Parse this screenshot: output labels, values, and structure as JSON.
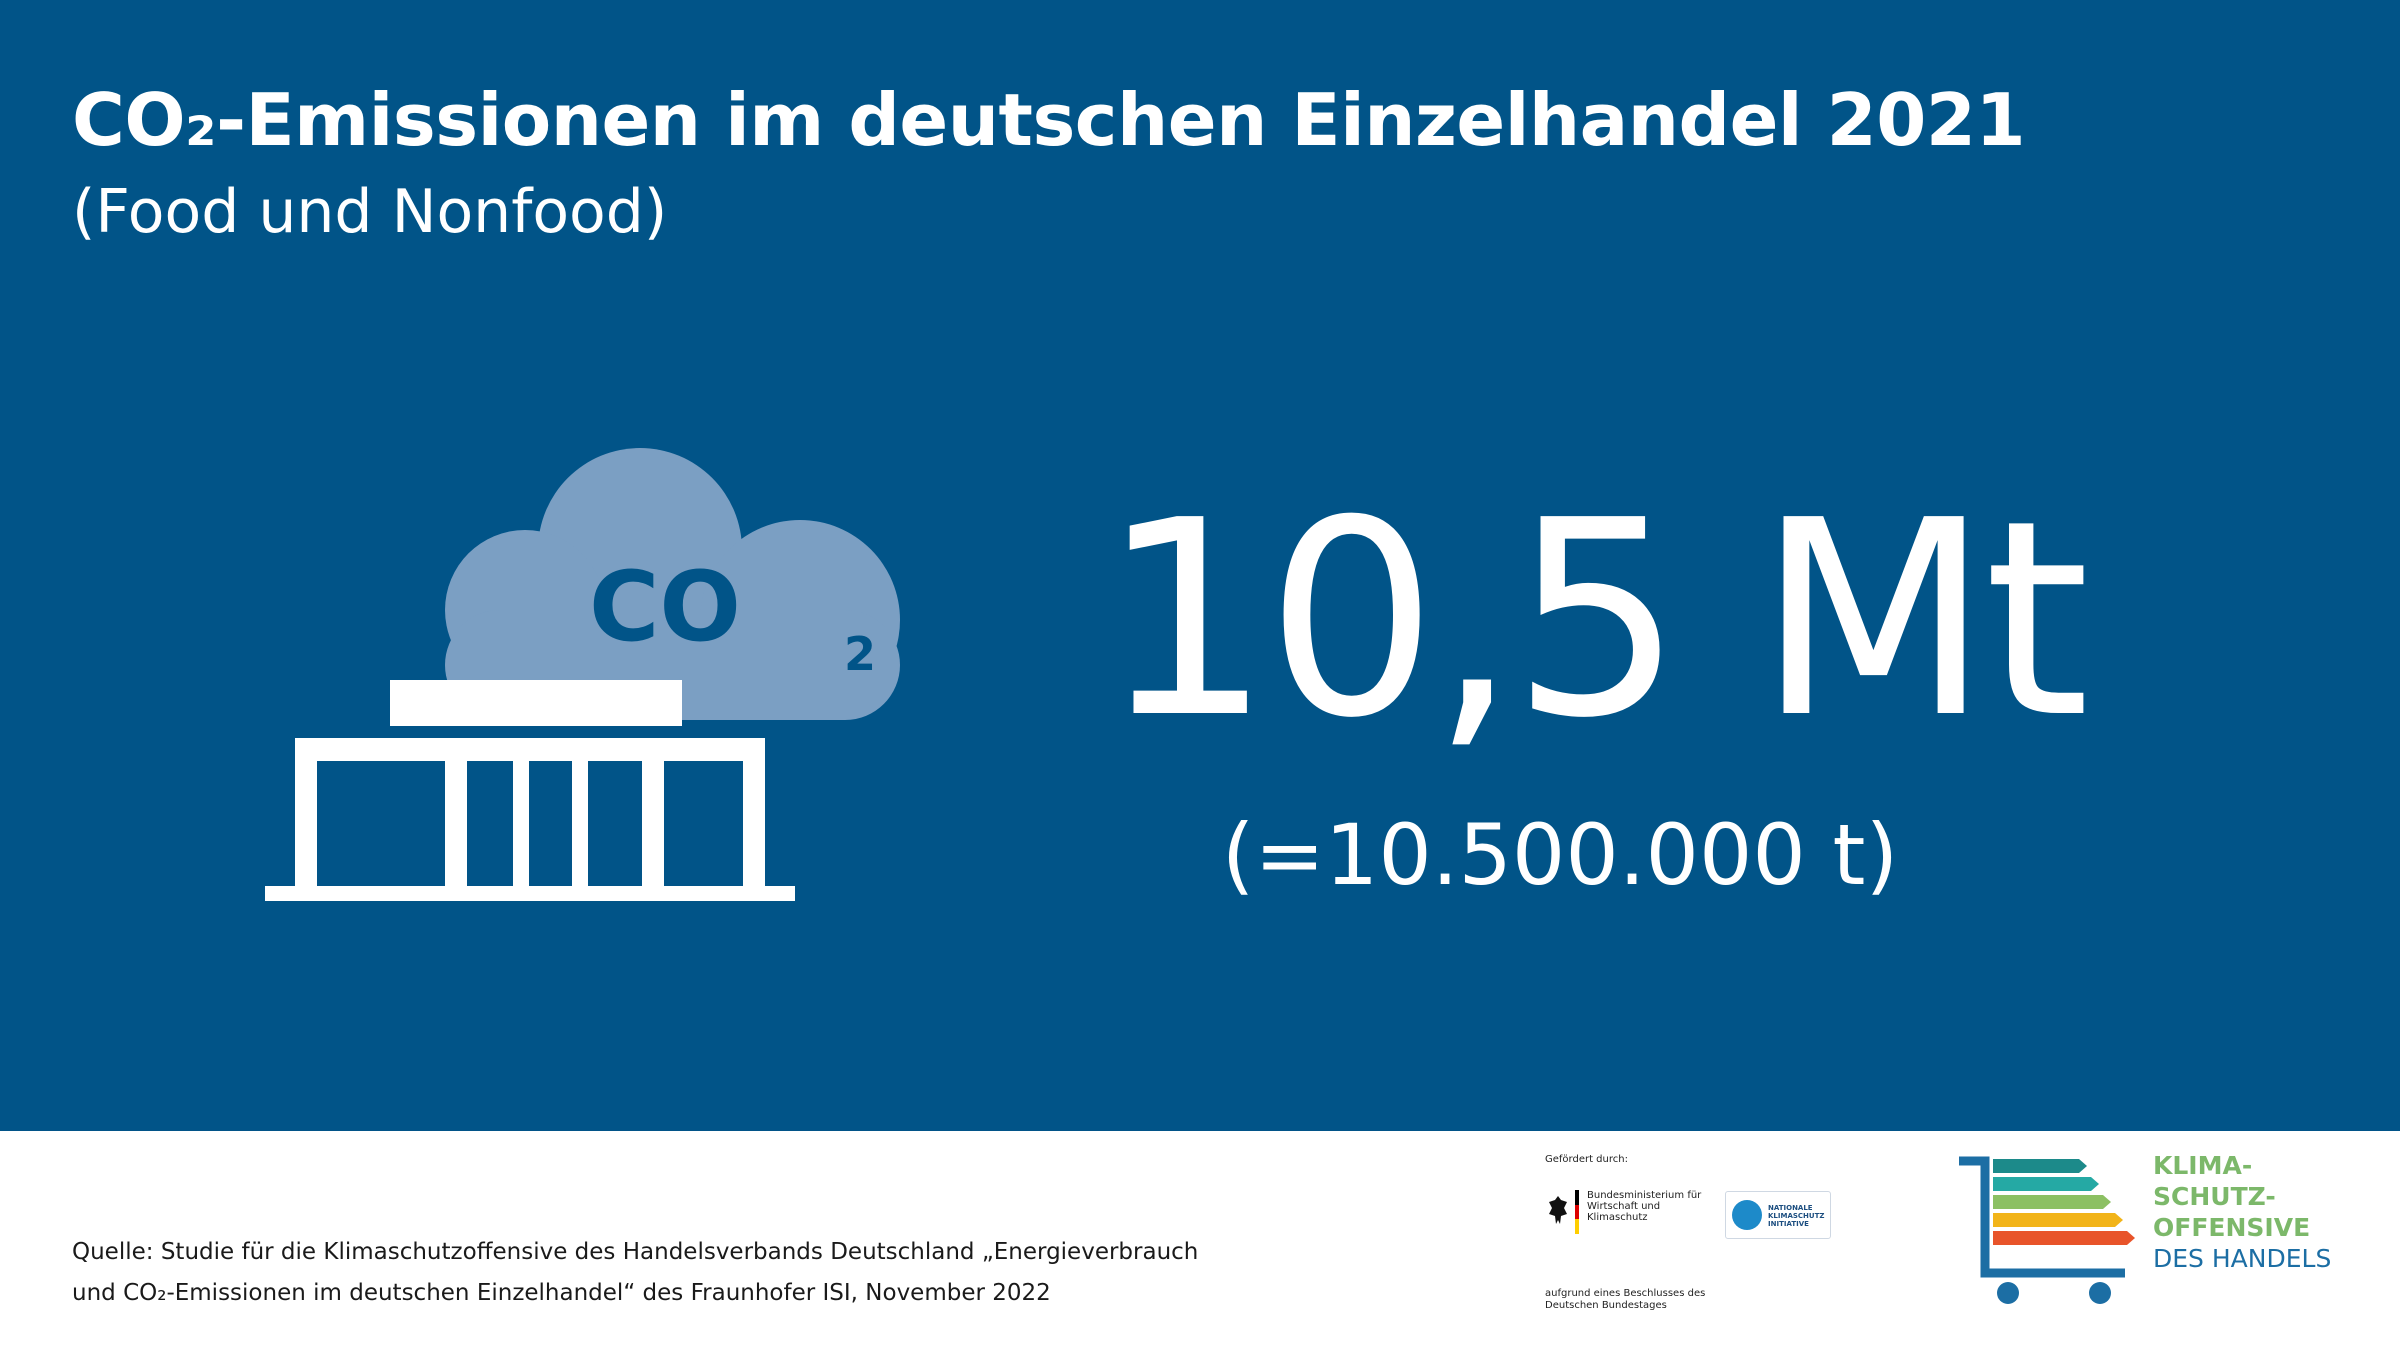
{
  "header": {
    "title": "CO₂-Emissionen im deutschen Einzelhandel 2021",
    "subtitle": "(Food und Nonfood)"
  },
  "illustration": {
    "icon": "store-with-co2-cloud-icon",
    "cloud_label": "CO",
    "cloud_subscript": "2"
  },
  "figure": {
    "main_value": "10,5 Mt",
    "equivalent": "(=10.500.000 t)"
  },
  "footer": {
    "source_line1": "Quelle: Studie für die Klimaschutzoffensive des Handelsverbands Deutschland „Energieverbrauch",
    "source_line2": "und CO₂-Emissionen im deutschen Einzelhandel“ des Fraunhofer ISI, November 2022",
    "sponsor_intro": "Gefördert durch:",
    "ministry": "Bundesministerium für Wirtschaft und Klimaschutz",
    "nki": "NATIONALE KLIMASCHUTZ INITIATIVE",
    "beschluss": "aufgrund eines Beschlusses des Deutschen Bundestages"
  },
  "logo": {
    "line1": "KLIMA-",
    "line2": "SCHUTZ-",
    "line3": "OFFENSIVE",
    "line4": "DES HANDELS"
  },
  "colors": {
    "background_blue": "#015488",
    "cloud": "#7b9fc3",
    "logo_green": "#7cb86a",
    "logo_blue": "#1c6ea4"
  }
}
